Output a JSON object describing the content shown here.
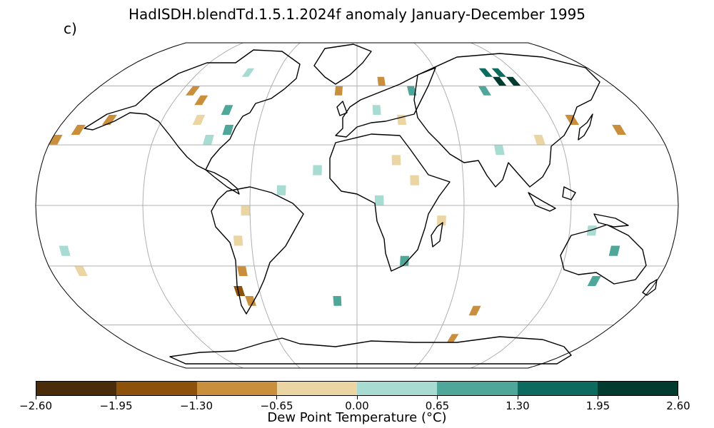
{
  "title": "HadISDH.blendTd.1.5.1.2024f anomaly January-December 1995",
  "panel_label": "c)",
  "colorbar": {
    "label": "Dew Point Temperature (°C)",
    "tick_labels": [
      "−2.60",
      "−1.95",
      "−1.30",
      "−0.65",
      "0.00",
      "0.65",
      "1.30",
      "1.95",
      "2.60"
    ],
    "colors": [
      "#4a2c0a",
      "#8c510a",
      "#c98f3d",
      "#ebd6a3",
      "#a8dcd3",
      "#4fa79a",
      "#0a6b5e",
      "#013b30"
    ]
  },
  "map": {
    "projection": "Robinson",
    "levels": [
      -2.6,
      -1.95,
      -1.3,
      -0.65,
      0.0,
      0.65,
      1.3,
      1.95,
      2.6
    ],
    "anomaly_grid_lat_lon_value": [
      [
        67.5,
        -82.5,
        0.5
      ],
      [
        67.5,
        97.5,
        1.5
      ],
      [
        67.5,
        107.5,
        1.7
      ],
      [
        62.5,
        102.5,
        2.2
      ],
      [
        62.5,
        112.5,
        2.0
      ],
      [
        57.5,
        37.5,
        0.9
      ],
      [
        57.5,
        87.5,
        1.1
      ],
      [
        62.5,
        17.5,
        -1.2
      ],
      [
        57.5,
        -12.5,
        -0.8
      ],
      [
        57.5,
        -112.5,
        -0.7
      ],
      [
        52.5,
        -102.5,
        -1.0
      ],
      [
        47.5,
        -82.5,
        0.8
      ],
      [
        42.5,
        -97.5,
        -0.5
      ],
      [
        37.5,
        -77.5,
        1.2
      ],
      [
        32.5,
        -87.5,
        0.4
      ],
      [
        42.5,
        -152.5,
        -1.0
      ],
      [
        37.5,
        -167.5,
        -1.2
      ],
      [
        32.5,
        -177.5,
        -0.9
      ],
      [
        47.5,
        12.5,
        0.4
      ],
      [
        42.5,
        27.5,
        -0.4
      ],
      [
        42.5,
        132.5,
        -1.0
      ],
      [
        37.5,
        157.5,
        -0.9
      ],
      [
        32.5,
        107.5,
        -0.4
      ],
      [
        27.5,
        82.5,
        0.5
      ],
      [
        22.5,
        22.5,
        -0.3
      ],
      [
        17.5,
        -22.5,
        0.5
      ],
      [
        12.5,
        32.5,
        -0.6
      ],
      [
        7.5,
        -42.5,
        0.3
      ],
      [
        2.5,
        12.5,
        0.4
      ],
      [
        -2.5,
        -62.5,
        -0.4
      ],
      [
        -7.5,
        47.5,
        -0.3
      ],
      [
        -12.5,
        132.5,
        0.6
      ],
      [
        -17.5,
        -67.5,
        -0.3
      ],
      [
        -22.5,
        147.5,
        0.8
      ],
      [
        -27.5,
        27.5,
        1.0
      ],
      [
        -32.5,
        -67.5,
        -1.1
      ],
      [
        -37.5,
        142.5,
        0.7
      ],
      [
        -42.5,
        -72.5,
        -1.9
      ],
      [
        -47.5,
        -67.5,
        -0.9
      ],
      [
        -47.5,
        -12.5,
        0.8
      ],
      [
        -22.5,
        -167.5,
        0.3
      ],
      [
        -32.5,
        -162.5,
        -0.3
      ],
      [
        -52.5,
        77.5,
        -0.9
      ],
      [
        -67.5,
        72.5,
        -1.0
      ]
    ]
  }
}
